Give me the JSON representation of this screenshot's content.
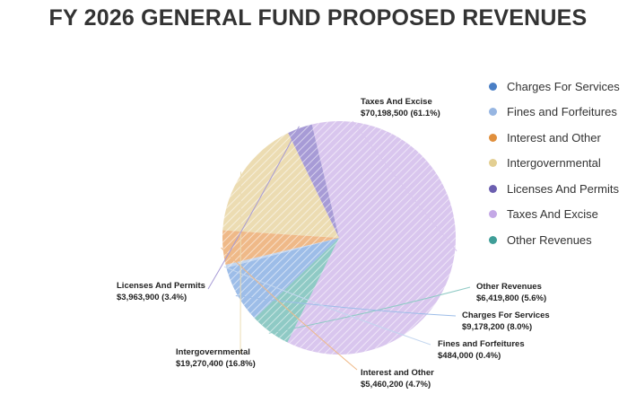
{
  "title": "FY 2026 GENERAL FUND PROPOSED REVENUES",
  "chart_data": {
    "type": "pie",
    "title": "FY 2026 GENERAL FUND PROPOSED REVENUES",
    "legend": "right",
    "slices": [
      {
        "name": "Taxes And Excise",
        "value": 70198500,
        "value_label": "$70,198,500 (61.1%)",
        "percent": 61.1,
        "color": "#d9c6ee"
      },
      {
        "name": "Other Revenues",
        "value": 6419800,
        "value_label": "$6,419,800 (5.6%)",
        "percent": 5.6,
        "color": "#8fcac5"
      },
      {
        "name": "Charges For Services",
        "value": 9178200,
        "value_label": "$9,178,200 (8.0%)",
        "percent": 8.0,
        "color": "#9dbde8"
      },
      {
        "name": "Fines and Forfeitures",
        "value": 484000,
        "value_label": "$484,000 (0.4%)",
        "percent": 0.4,
        "color": "#c3d6ef"
      },
      {
        "name": "Interest and Other",
        "value": 5460200,
        "value_label": "$5,460,200 (4.7%)",
        "percent": 4.7,
        "color": "#efb988"
      },
      {
        "name": "Intergovernmental",
        "value": 19270400,
        "value_label": "$19,270,400 (16.8%)",
        "percent": 16.8,
        "color": "#ecdcb2"
      },
      {
        "name": "Licenses And Permits",
        "value": 3963900,
        "value_label": "$3,963,900 (3.4%)",
        "percent": 3.4,
        "color": "#a79bd6"
      }
    ],
    "legend_items": [
      {
        "name": "Charges For Services",
        "color": "#4a7fc5"
      },
      {
        "name": "Fines and Forfeitures",
        "color": "#97b6e2"
      },
      {
        "name": "Interest and Other",
        "color": "#e08f3d"
      },
      {
        "name": "Intergovernmental",
        "color": "#e3cf92"
      },
      {
        "name": "Licenses And Permits",
        "color": "#6c5fb0"
      },
      {
        "name": "Taxes And Excise",
        "color": "#c4a8e6"
      },
      {
        "name": "Other Revenues",
        "color": "#3f9e98"
      }
    ]
  }
}
